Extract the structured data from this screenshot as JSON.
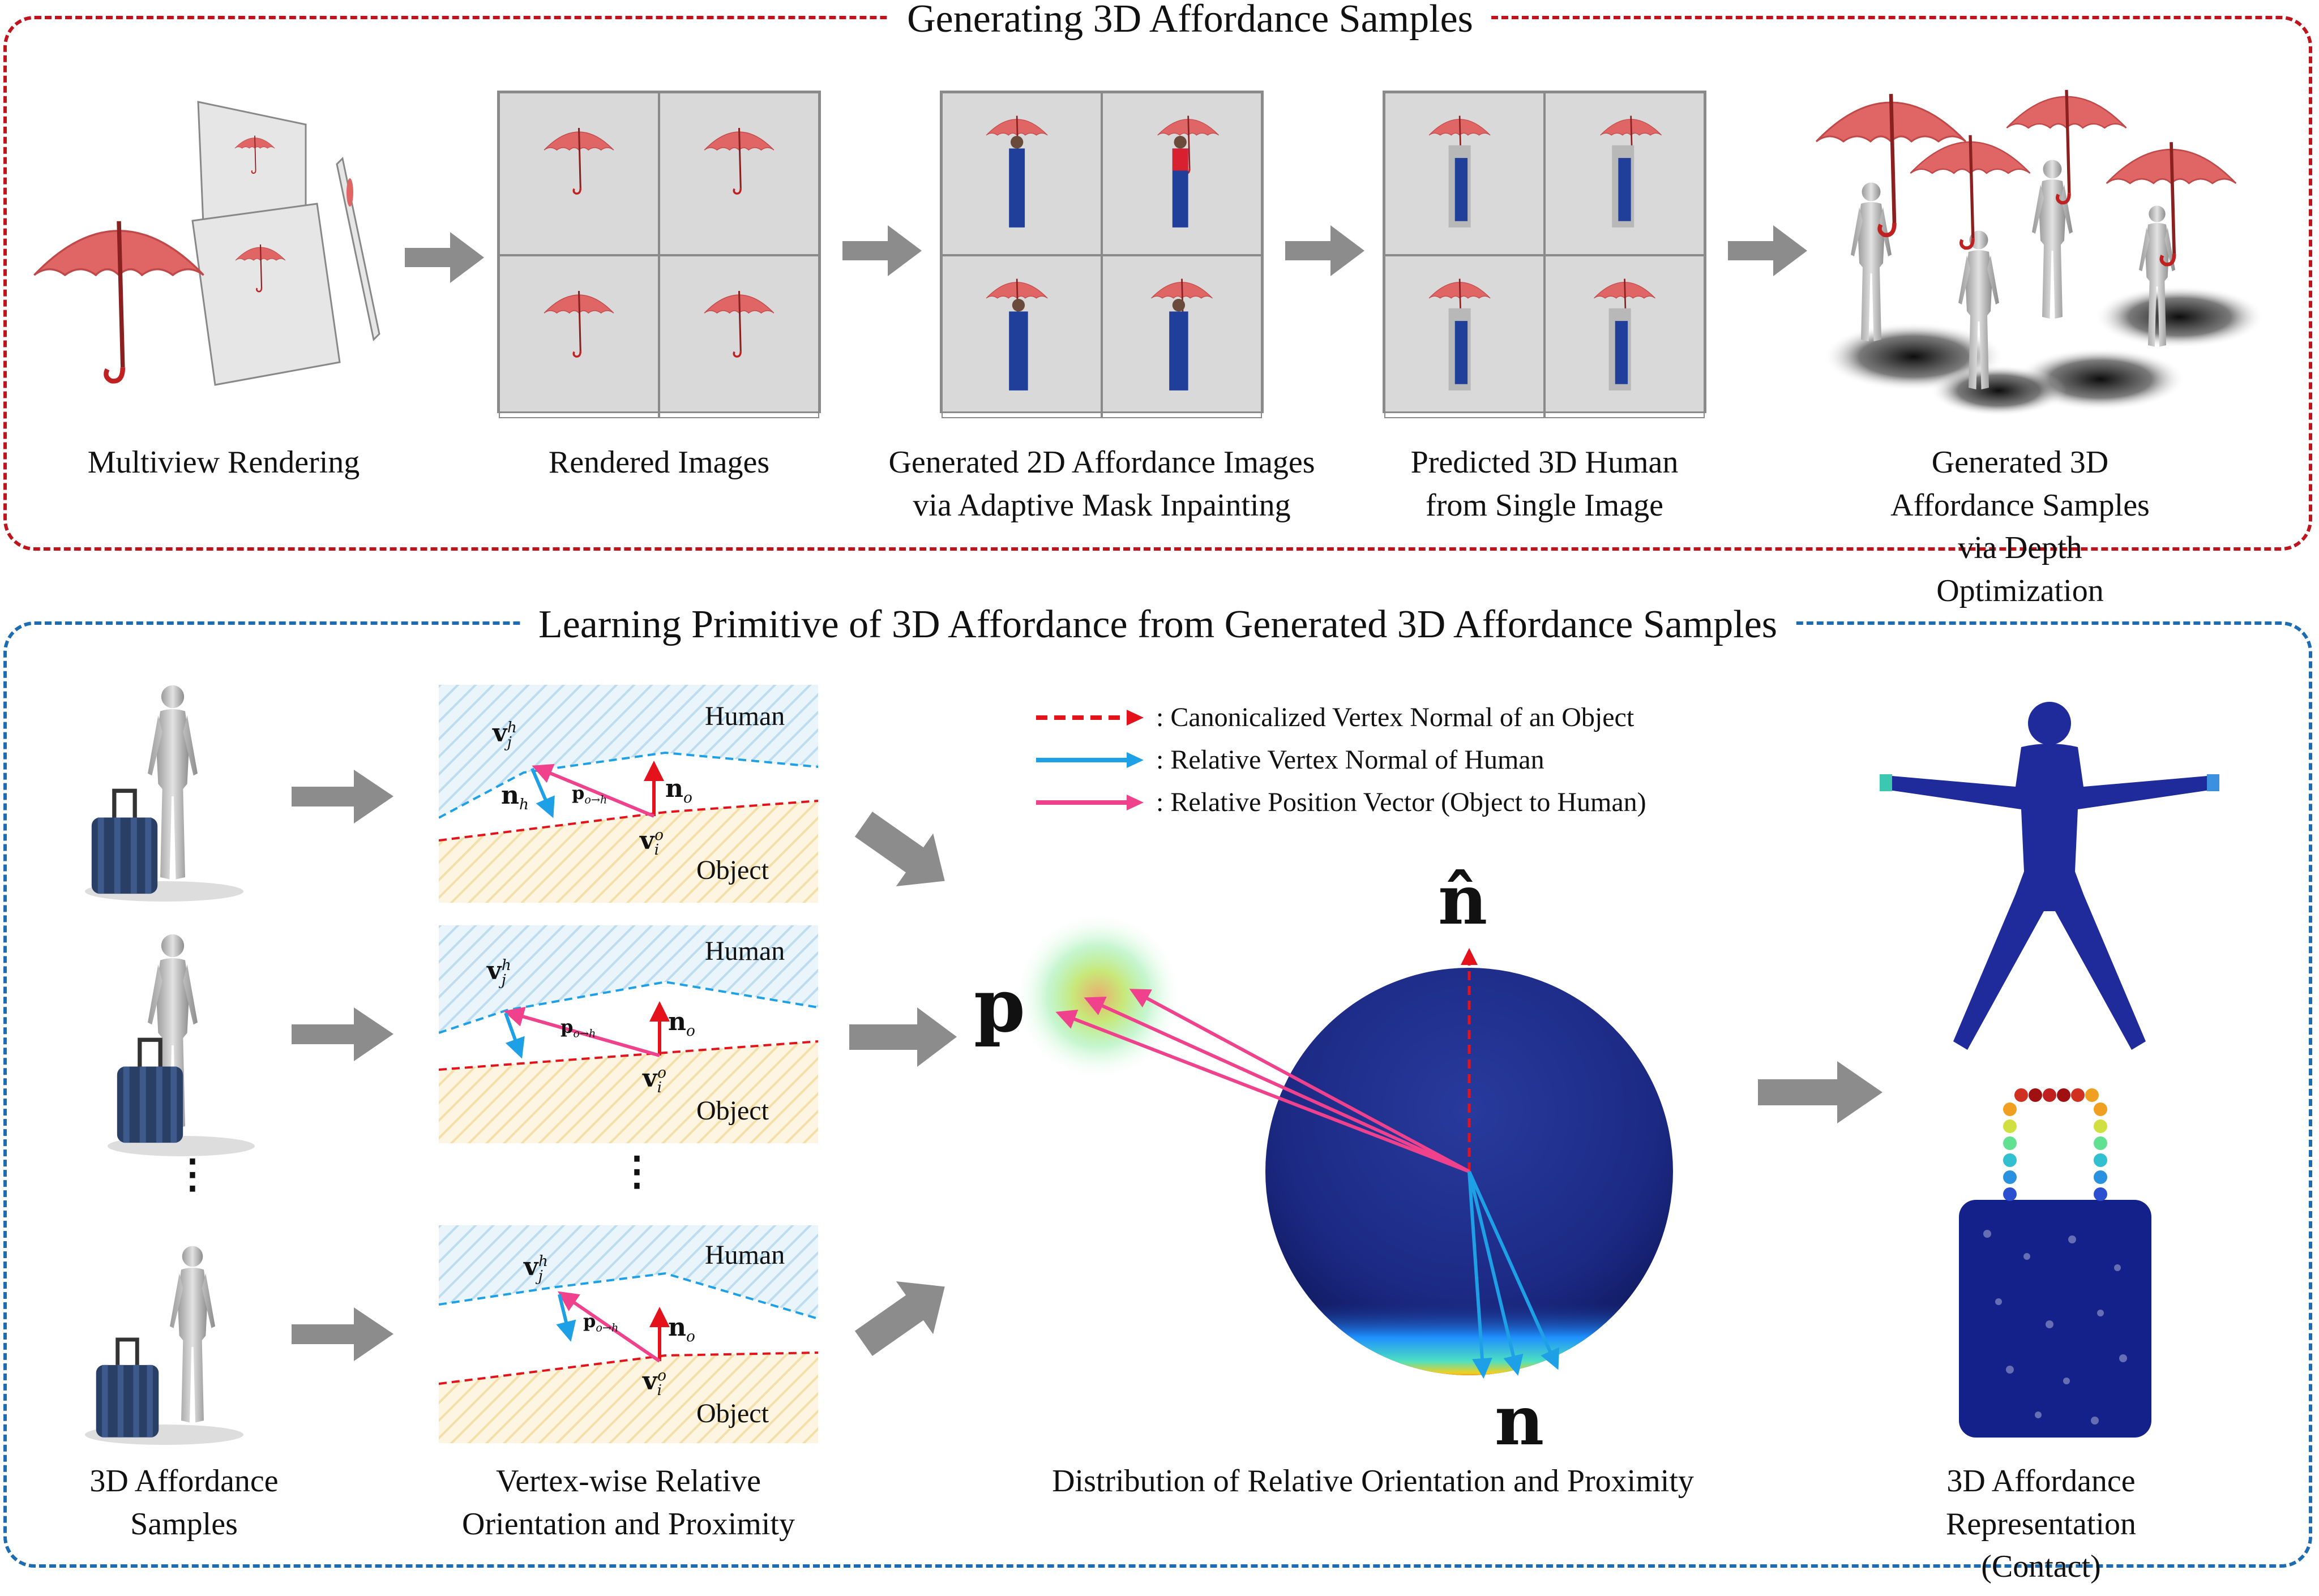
{
  "top": {
    "title": "Generating 3D Affordance Samples",
    "labels": [
      "Multiview Rendering",
      "Rendered Images",
      "Generated 2D Affordance Images\nvia Adaptive Mask Inpainting",
      "Predicted 3D Human\nfrom Single Image",
      "Generated 3D Affordance Samples\nvia Depth Optimization"
    ]
  },
  "bottom": {
    "title": "Learning Primitive of 3D Affordance from Generated 3D Affordance Samples",
    "col1_label": "3D Affordance\nSamples",
    "col2_label": "Vertex-wise Relative\nOrientation and Proximity",
    "col3_label": "Distribution of Relative Orientation and Proximity",
    "col4_label": "3D Affordance\nRepresentation (Contact)",
    "vdots": "⋮",
    "region_human": "Human",
    "region_object": "Object",
    "sym_vjh": "vjh",
    "sym_nh": "nh",
    "sym_no": "no",
    "sym_vio": "vio",
    "sym_p": "po→h",
    "legend": [
      {
        "text": ":  Canonicalized Vertex Normal of an Object",
        "color": "#e3121b"
      },
      {
        "text": ":  Relative Vertex Normal of Human",
        "color": "#1ea0e6"
      },
      {
        "text": ":  Relative Position Vector (Object to Human)",
        "color": "#f0428c"
      }
    ],
    "sphere_labels": {
      "n_hat": "n̂",
      "p": "p",
      "n": "n"
    }
  },
  "colors": {
    "red_border": "#c0141c",
    "blue_border": "#1d6bb1",
    "umbrella": "#e06666",
    "arrow_gray": "#8c8c8c"
  }
}
